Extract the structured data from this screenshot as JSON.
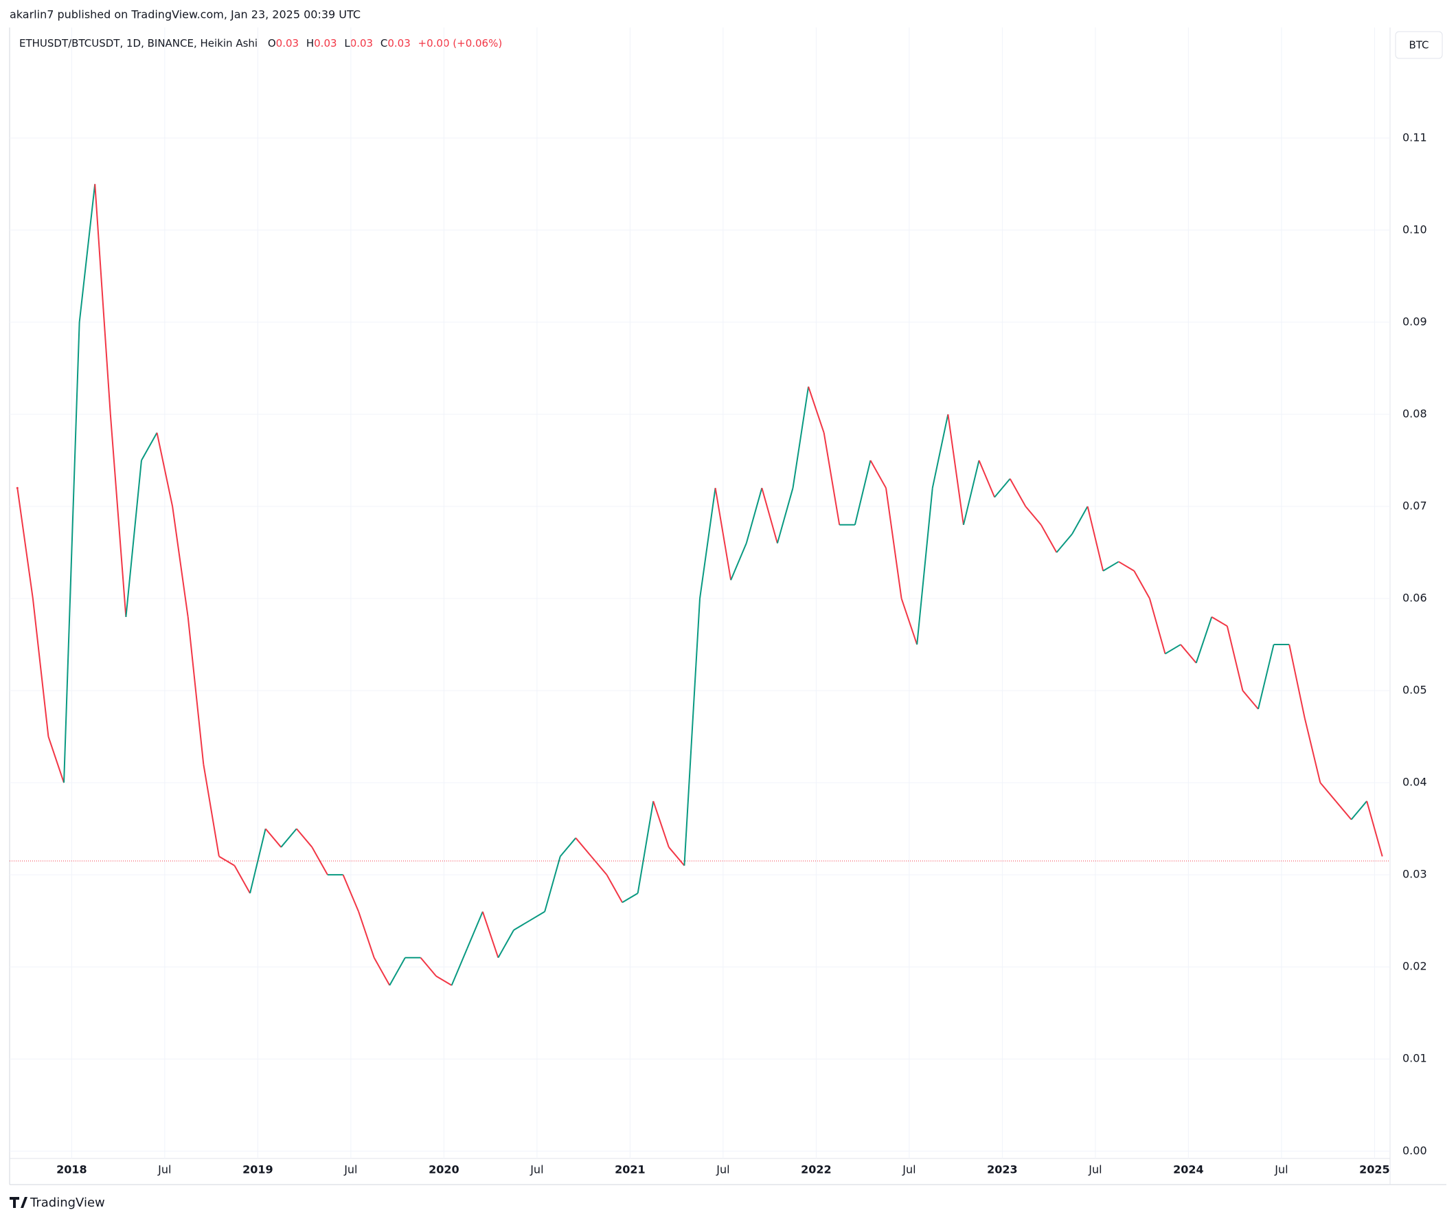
{
  "header": {
    "text": "akarlin7 published on TradingView.com, Jan 23, 2025 00:39 UTC"
  },
  "currency_button": "BTC",
  "footer": {
    "logo_text": "TradingView"
  },
  "chart_data": {
    "type": "line",
    "legend": {
      "open_label": "O",
      "open": 0.03,
      "high_label": "H",
      "high": 0.03,
      "low_label": "L",
      "low": 0.03,
      "close_label": "C",
      "close": 0.03,
      "change": "+0.00 (+0.06%)"
    },
    "x": [
      "2017-09",
      "2017-10",
      "2017-11",
      "2017-12",
      "2018-01",
      "2018-02",
      "2018-03",
      "2018-04",
      "2018-05",
      "2018-06",
      "2018-07",
      "2018-08",
      "2018-09",
      "2018-10",
      "2018-11",
      "2018-12",
      "2019-01",
      "2019-02",
      "2019-03",
      "2019-04",
      "2019-05",
      "2019-06",
      "2019-07",
      "2019-08",
      "2019-09",
      "2019-10",
      "2019-11",
      "2019-12",
      "2020-01",
      "2020-02",
      "2020-03",
      "2020-04",
      "2020-05",
      "2020-06",
      "2020-07",
      "2020-08",
      "2020-09",
      "2020-10",
      "2020-11",
      "2020-12",
      "2021-01",
      "2021-02",
      "2021-03",
      "2021-04",
      "2021-05",
      "2021-06",
      "2021-07",
      "2021-08",
      "2021-09",
      "2021-10",
      "2021-11",
      "2021-12",
      "2022-01",
      "2022-02",
      "2022-03",
      "2022-04",
      "2022-05",
      "2022-06",
      "2022-07",
      "2022-08",
      "2022-09",
      "2022-10",
      "2022-11",
      "2022-12",
      "2023-01",
      "2023-02",
      "2023-03",
      "2023-04",
      "2023-05",
      "2023-06",
      "2023-07",
      "2023-08",
      "2023-09",
      "2023-10",
      "2023-11",
      "2023-12",
      "2024-01",
      "2024-02",
      "2024-03",
      "2024-04",
      "2024-05",
      "2024-06",
      "2024-07",
      "2024-08",
      "2024-09",
      "2024-10",
      "2024-11",
      "2024-12",
      "2025-01"
    ],
    "series": [
      {
        "name": "ETHUSDT/BTCUSDT, 1D, BINANCE, Heikin Ashi",
        "up_color": "#089981",
        "down_color": "#f23645",
        "values": [
          0.072,
          0.06,
          0.045,
          0.04,
          0.09,
          0.105,
          0.08,
          0.058,
          0.075,
          0.078,
          0.07,
          0.058,
          0.042,
          0.032,
          0.031,
          0.028,
          0.035,
          0.033,
          0.035,
          0.033,
          0.03,
          0.03,
          0.026,
          0.021,
          0.018,
          0.021,
          0.021,
          0.019,
          0.018,
          0.022,
          0.026,
          0.021,
          0.024,
          0.025,
          0.026,
          0.032,
          0.034,
          0.032,
          0.03,
          0.027,
          0.028,
          0.038,
          0.033,
          0.031,
          0.06,
          0.072,
          0.062,
          0.066,
          0.072,
          0.066,
          0.072,
          0.083,
          0.078,
          0.068,
          0.068,
          0.075,
          0.072,
          0.06,
          0.055,
          0.072,
          0.08,
          0.068,
          0.075,
          0.071,
          0.073,
          0.07,
          0.068,
          0.065,
          0.067,
          0.07,
          0.063,
          0.064,
          0.063,
          0.06,
          0.054,
          0.055,
          0.053,
          0.058,
          0.057,
          0.05,
          0.048,
          0.055,
          0.055,
          0.047,
          0.04,
          0.038,
          0.036,
          0.038,
          0.032
        ]
      }
    ],
    "last_price": 0.0315,
    "xlim": [
      "2017-09",
      "2025-02"
    ],
    "xticks": [
      {
        "value": "2018-01",
        "label": "2018"
      },
      {
        "value": "2018-07",
        "label": "Jul"
      },
      {
        "value": "2019-01",
        "label": "2019"
      },
      {
        "value": "2019-07",
        "label": "Jul"
      },
      {
        "value": "2020-01",
        "label": "2020"
      },
      {
        "value": "2020-07",
        "label": "Jul"
      },
      {
        "value": "2021-01",
        "label": "2021"
      },
      {
        "value": "2021-07",
        "label": "Jul"
      },
      {
        "value": "2022-01",
        "label": "2022"
      },
      {
        "value": "2022-07",
        "label": "Jul"
      },
      {
        "value": "2023-01",
        "label": "2023"
      },
      {
        "value": "2023-07",
        "label": "Jul"
      },
      {
        "value": "2024-01",
        "label": "2024"
      },
      {
        "value": "2024-07",
        "label": "Jul"
      },
      {
        "value": "2025-01",
        "label": "2025"
      }
    ],
    "ylim": [
      -0.0008,
      0.122
    ],
    "yticks": [
      {
        "value": 0,
        "label": "0.00"
      },
      0.01,
      0.02,
      0.03,
      0.04,
      0.05,
      0.06,
      0.07,
      0.08,
      0.09,
      {
        "value": 0.1,
        "label": "0.10"
      },
      0.11
    ],
    "grid": true
  }
}
